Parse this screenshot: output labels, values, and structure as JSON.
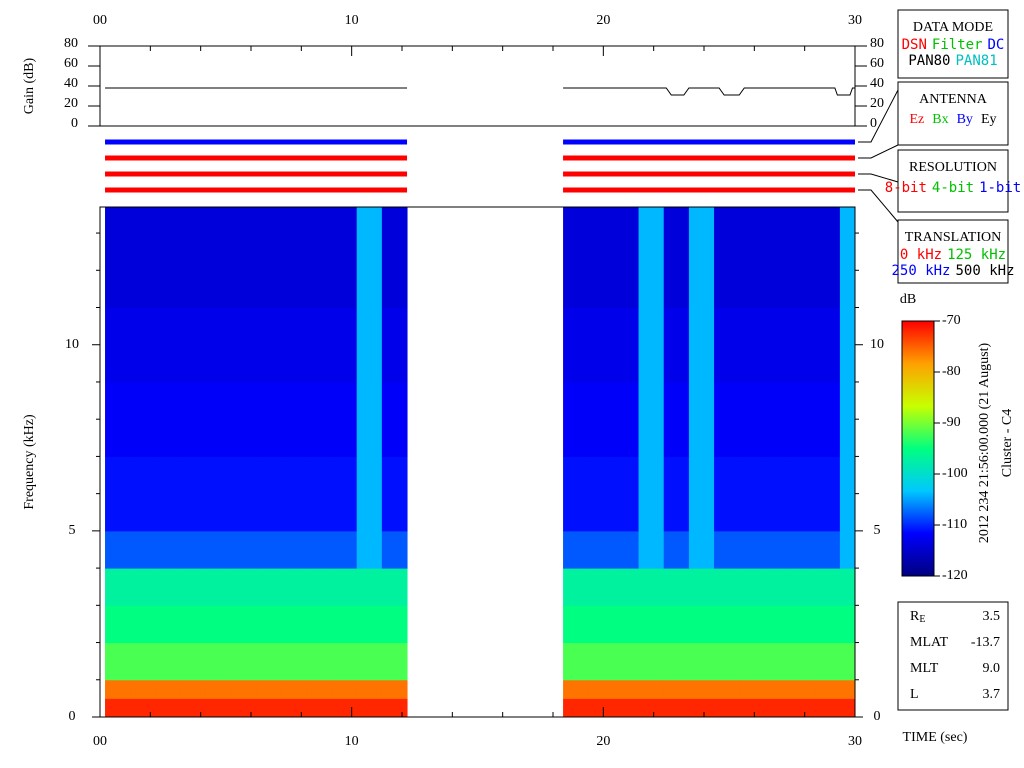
{
  "chart_data": {
    "type": "heatmap",
    "xlabel": "TIME (sec)",
    "ylabel": "Frequency (kHz)",
    "xlim": [
      0,
      30
    ],
    "xticks": [
      {
        "value": 0,
        "label": "00"
      },
      10,
      20,
      30
    ],
    "xminorticks": [
      2,
      4,
      6,
      8,
      12,
      14,
      16,
      18,
      22,
      24,
      26,
      28
    ],
    "ylim": [
      0,
      13.7
    ],
    "yticks": [
      0,
      5,
      10
    ],
    "yminorticks": [
      1,
      2,
      3,
      4,
      6,
      7,
      8,
      9,
      11,
      12,
      13
    ],
    "x_bins": [
      0.2,
      1.2,
      2.2,
      3.2,
      4.2,
      5.2,
      6.2,
      7.2,
      8.2,
      9.2,
      10.2,
      11.2,
      12.2,
      18.4,
      19.4,
      20.4,
      21.4,
      22.4,
      23.4,
      24.4,
      25.4,
      26.4,
      27.4,
      28.4,
      29.4,
      30
    ],
    "y_bins": [
      0,
      0.5,
      1,
      2,
      3,
      4,
      5,
      7,
      9,
      11,
      13.7
    ],
    "values": [
      [
        -72,
        -72,
        -72,
        -72,
        -72,
        -72,
        -72,
        -72,
        -72,
        -72,
        -72,
        -72,
        null,
        -72,
        -72,
        -72,
        -72,
        -72,
        -72,
        -72,
        -72,
        -72,
        -72,
        -72,
        -72
      ],
      [
        -76,
        -76,
        -76,
        -76,
        -76,
        -76,
        -76,
        -76,
        -76,
        -76,
        -76,
        -76,
        null,
        -76,
        -76,
        -76,
        -76,
        -76,
        -76,
        -76,
        -76,
        -76,
        -76,
        -76,
        -76
      ],
      [
        -92,
        -92,
        -92,
        -92,
        -92,
        -92,
        -92,
        -92,
        -92,
        -92,
        -92,
        -92,
        null,
        -92,
        -92,
        -92,
        -92,
        -92,
        -92,
        -92,
        -92,
        -92,
        -92,
        -92,
        -92
      ],
      [
        -95,
        -95,
        -95,
        -95,
        -95,
        -95,
        -95,
        -95,
        -95,
        -95,
        -95,
        -95,
        null,
        -95,
        -95,
        -95,
        -95,
        -95,
        -95,
        -95,
        -95,
        -95,
        -95,
        -95,
        -95
      ],
      [
        -97,
        -97,
        -97,
        -97,
        -97,
        -97,
        -97,
        -97,
        -97,
        -97,
        -97,
        -97,
        null,
        -97,
        -97,
        -97,
        -97,
        -97,
        -97,
        -97,
        -97,
        -97,
        -97,
        -97,
        -97
      ],
      [
        -108,
        -108,
        -108,
        -108,
        -108,
        -108,
        -108,
        -108,
        -108,
        -108,
        -104,
        -108,
        null,
        -108,
        -108,
        -108,
        -104,
        -108,
        -104,
        -108,
        -108,
        -108,
        -108,
        -108,
        -104
      ],
      [
        -111,
        -111,
        -111,
        -111,
        -111,
        -111,
        -111,
        -111,
        -111,
        -111,
        -104,
        -111,
        null,
        -111,
        -111,
        -111,
        -104,
        -111,
        -104,
        -111,
        -111,
        -111,
        -111,
        -111,
        -104
      ],
      [
        -112,
        -112,
        -112,
        -112,
        -112,
        -112,
        -112,
        -112,
        -112,
        -112,
        -104,
        -112,
        null,
        -112,
        -112,
        -112,
        -104,
        -112,
        -104,
        -112,
        -112,
        -112,
        -112,
        -112,
        -104
      ],
      [
        -113,
        -113,
        -113,
        -113,
        -113,
        -113,
        -113,
        -113,
        -113,
        -113,
        -104,
        -113,
        null,
        -113,
        -113,
        -113,
        -104,
        -113,
        -104,
        -113,
        -113,
        -113,
        -113,
        -113,
        -104
      ],
      [
        -114,
        -114,
        -114,
        -114,
        -114,
        -114,
        -114,
        -114,
        -114,
        -114,
        -104,
        -114,
        null,
        -114,
        -114,
        -114,
        -104,
        -114,
        -104,
        -114,
        -114,
        -114,
        -114,
        -114,
        -104
      ]
    ],
    "colorbar": {
      "label": "dB",
      "zlim": [
        -120,
        -70
      ],
      "zticks": [
        -120,
        -110,
        -100,
        -90,
        -80,
        -70
      ],
      "colors": [
        "#000080",
        "#0000ff",
        "#00c8ff",
        "#00ff80",
        "#c8ff00",
        "#ffa000",
        "#ff0000"
      ]
    },
    "gain": {
      "label": "Gain (dB)",
      "ylim": [
        0,
        80
      ],
      "yticks": [
        0,
        20,
        40,
        60,
        80
      ],
      "color": "#000000",
      "x": [
        0.2,
        12.2,
        15,
        18.4,
        22.5,
        22.7,
        23.2,
        23.4,
        24.6,
        24.8,
        25.4,
        25.6,
        29.2,
        29.3,
        29.8,
        29.9,
        30
      ],
      "values": [
        38,
        38,
        null,
        38,
        38,
        31,
        31,
        38,
        38,
        31,
        31,
        38,
        38,
        31,
        31,
        38,
        38
      ]
    },
    "status": {
      "segments": [
        [
          0.2,
          12.2
        ],
        [
          18.4,
          30
        ]
      ],
      "colors": [
        "#0000ff",
        "#ff0000",
        "#ff0000",
        "#ff0000"
      ]
    }
  },
  "panels": [
    {
      "title": "DATA MODE",
      "items": [
        {
          "text": "DSN",
          "color": "#ff0000"
        },
        {
          "text": "Filter",
          "color": "#00c000"
        },
        {
          "text": "DC",
          "color": "#0000ff"
        },
        {
          "text": "PAN80",
          "color": "#000000"
        },
        {
          "text": "PAN81",
          "color": "#00c0c0"
        }
      ]
    },
    {
      "title": "ANTENNA",
      "items": [
        {
          "text": "Ez",
          "color": "#ff0000"
        },
        {
          "text": "Bx",
          "color": "#00c000"
        },
        {
          "text": "By",
          "color": "#0000ff"
        },
        {
          "text": "Ey",
          "color": "#000000"
        }
      ]
    },
    {
      "title": "RESOLUTION",
      "items": [
        {
          "text": "8-bit",
          "color": "#ff0000"
        },
        {
          "text": "4-bit",
          "color": "#00c000"
        },
        {
          "text": "1-bit",
          "color": "#0000ff"
        }
      ]
    },
    {
      "title": "TRANSLATION",
      "items": [
        {
          "text": "0 kHz",
          "color": "#ff0000"
        },
        {
          "text": "125 kHz",
          "color": "#00c000"
        },
        {
          "text": "250 kHz",
          "color": "#0000ff"
        },
        {
          "text": "500 kHz",
          "color": "#000000"
        }
      ]
    }
  ],
  "info": [
    {
      "label": "R",
      "sub": "E",
      "value": "3.5"
    },
    {
      "label": "MLAT",
      "value": "-13.7"
    },
    {
      "label": "MLT",
      "value": "9.0"
    },
    {
      "label": "L",
      "value": "3.7"
    }
  ],
  "stamp": [
    "2012 234 21:56:00.000 (21 August)",
    "Cluster - C4"
  ]
}
